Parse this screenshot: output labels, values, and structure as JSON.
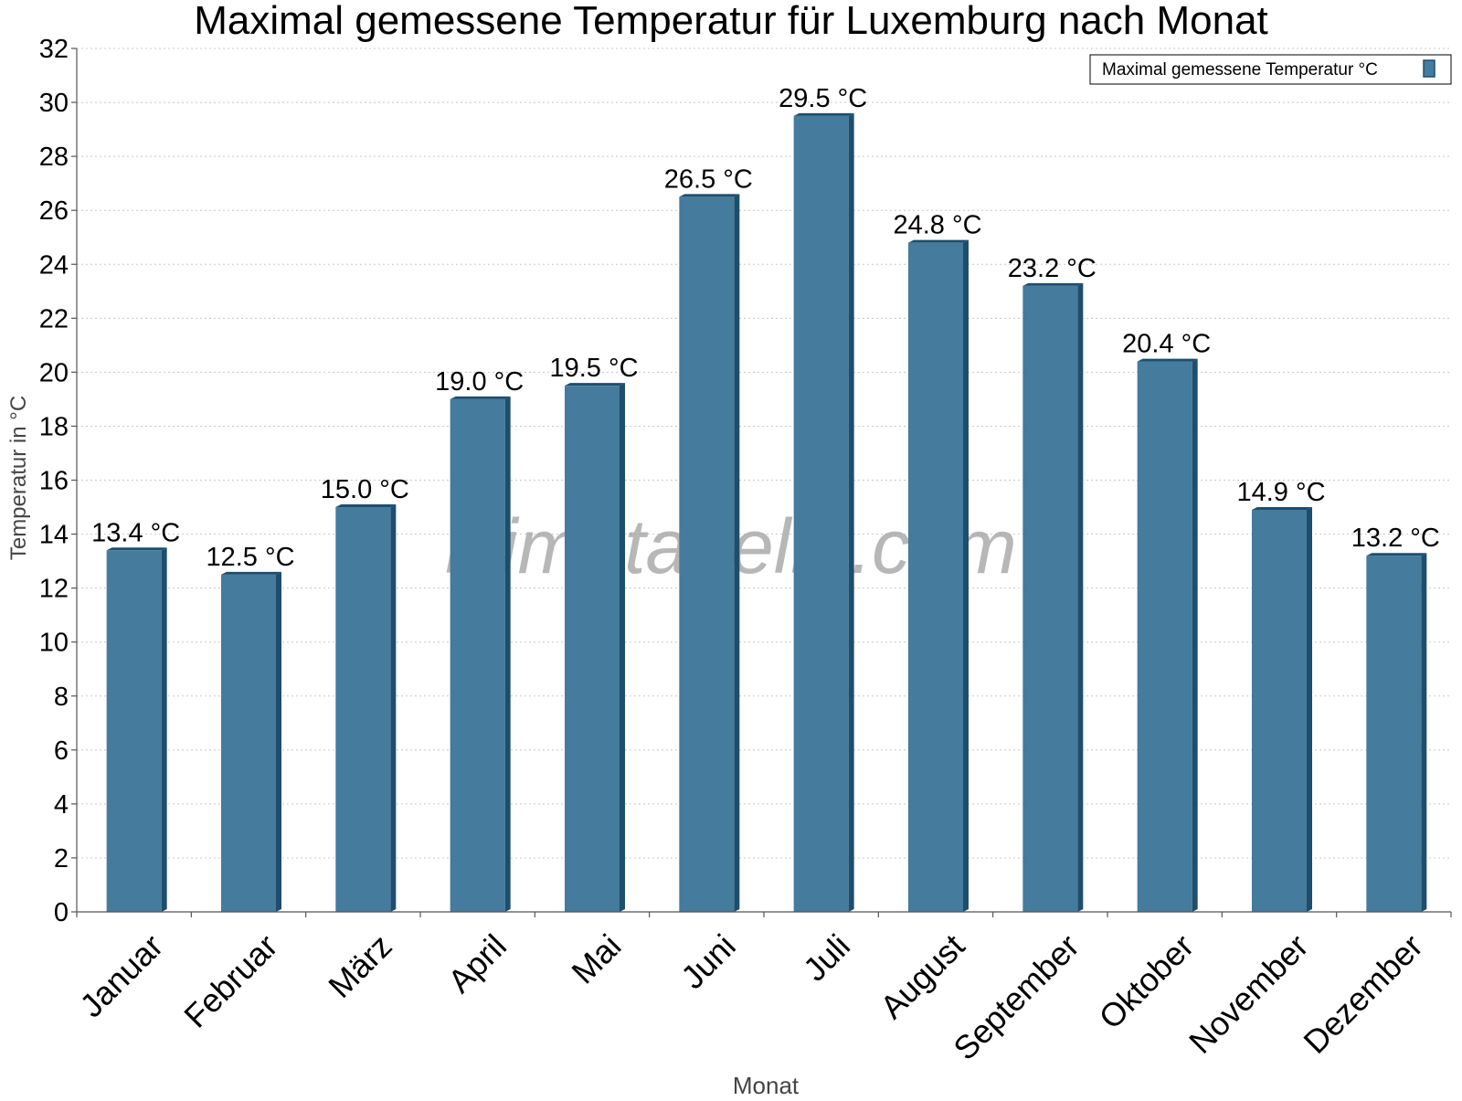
{
  "chart_data": {
    "type": "bar",
    "title": "Maximal gemessene Temperatur für Luxemburg nach Monat",
    "xlabel": "Monat",
    "ylabel": "Temperatur in °C",
    "categories": [
      "Januar",
      "Februar",
      "März",
      "April",
      "Mai",
      "Juni",
      "Juli",
      "August",
      "September",
      "Oktober",
      "November",
      "Dezember"
    ],
    "series": [
      {
        "name": "Maximal gemessene Temperatur °C",
        "values": [
          13.4,
          12.5,
          15.0,
          19.0,
          19.5,
          26.5,
          29.5,
          24.8,
          23.2,
          20.4,
          14.9,
          13.2
        ],
        "data_labels": [
          "13.4 °C",
          "12.5 °C",
          "15.0 °C",
          "19.0 °C",
          "19.5 °C",
          "26.5 °C",
          "29.5 °C",
          "24.8 °C",
          "23.2 °C",
          "20.4 °C",
          "14.9 °C",
          "13.2 °C"
        ]
      }
    ],
    "ylim": [
      0,
      32
    ],
    "yticks": [
      0,
      2,
      4,
      6,
      8,
      10,
      12,
      14,
      16,
      18,
      20,
      22,
      24,
      26,
      28,
      30,
      32
    ],
    "grid": true,
    "legend_position": "top-right",
    "watermark": "klimatabelle.com",
    "colors": {
      "bar_face": "#457b9d",
      "bar_edge": "#1d4e6e",
      "axis_label": "#444444",
      "watermark": "#a0a0a0"
    }
  }
}
